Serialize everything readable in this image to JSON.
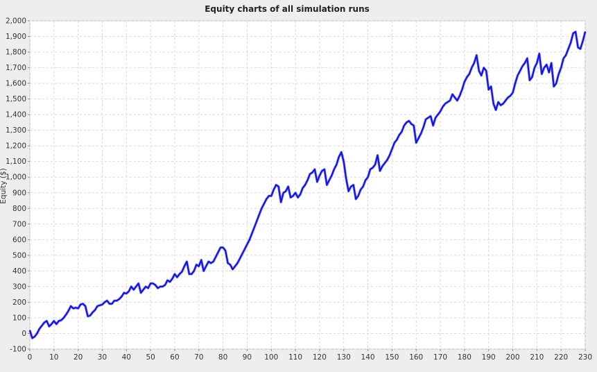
{
  "chart_data": {
    "type": "line",
    "title": "Equity charts of all simulation runs",
    "xlabel": "",
    "ylabel": "Equity ($)",
    "xlim": [
      0,
      230
    ],
    "ylim": [
      -100,
      2000
    ],
    "grid": true,
    "xticks": [
      0,
      10,
      20,
      30,
      40,
      50,
      60,
      70,
      80,
      90,
      100,
      110,
      120,
      130,
      140,
      150,
      160,
      170,
      180,
      190,
      200,
      210,
      220,
      230
    ],
    "xtick_labels": [
      "0",
      "10",
      "20",
      "30",
      "40",
      "50",
      "60",
      "70",
      "80",
      "90",
      "100",
      "110",
      "120",
      "130",
      "140",
      "150",
      "160",
      "170",
      "180",
      "190",
      "200",
      "210",
      "220",
      "230"
    ],
    "yticks": [
      -100,
      0,
      100,
      200,
      300,
      400,
      500,
      600,
      700,
      800,
      900,
      1000,
      1100,
      1200,
      1300,
      1400,
      1500,
      1600,
      1700,
      1800,
      1900,
      2000
    ],
    "ytick_labels": [
      "-100",
      "0",
      "100",
      "200",
      "300",
      "400",
      "500",
      "600",
      "700",
      "800",
      "900",
      "1,000",
      "1,100",
      "1,200",
      "1,300",
      "1,400",
      "1,500",
      "1,600",
      "1,700",
      "1,800",
      "1,900",
      "2,000"
    ],
    "colors": {
      "series_main": "#1010e0",
      "series_shadow": "#8080ff",
      "grid": "#d8d8d8",
      "plot_bg": "#ffffff"
    },
    "series": [
      {
        "x": [
          0,
          1,
          2,
          3,
          4,
          5,
          6,
          7,
          8,
          9,
          10,
          11,
          12,
          13,
          14,
          15,
          16,
          17,
          18,
          19,
          20,
          21,
          22,
          23,
          24,
          25,
          26,
          27,
          28,
          29,
          30,
          31,
          32,
          33,
          34,
          35,
          36,
          37,
          38,
          39,
          40,
          41,
          42,
          43,
          44,
          45,
          46,
          47,
          48,
          49,
          50,
          51,
          52,
          53,
          54,
          55,
          56,
          57,
          58,
          59,
          60,
          61,
          62,
          63,
          64,
          65,
          66,
          67,
          68,
          69,
          70,
          71,
          72,
          73,
          74,
          75,
          76,
          77,
          78,
          79,
          80,
          81,
          82,
          83,
          84,
          85,
          86,
          87,
          88,
          89,
          90,
          91,
          92,
          93,
          94,
          95,
          96,
          97,
          98,
          99,
          100,
          101,
          102,
          103,
          104,
          105,
          106,
          107,
          108,
          109,
          110,
          111,
          112,
          113,
          114,
          115,
          116,
          117,
          118,
          119,
          120,
          121,
          122,
          123,
          124,
          125,
          126,
          127,
          128,
          129,
          130,
          131,
          132,
          133,
          134,
          135,
          136,
          137,
          138,
          139,
          140,
          141,
          142,
          143,
          144,
          145,
          146,
          147,
          148,
          149,
          150,
          151,
          152,
          153,
          154,
          155,
          156,
          157,
          158,
          159,
          160,
          161,
          162,
          163,
          164,
          165,
          166,
          167,
          168,
          169,
          170,
          171,
          172,
          173,
          174,
          175,
          176,
          177,
          178,
          179,
          180,
          181,
          182,
          183,
          184,
          185,
          186,
          187,
          188,
          189,
          190,
          191,
          192,
          193,
          194,
          195,
          196,
          197,
          198,
          199,
          200,
          201,
          202,
          203,
          204,
          205,
          206,
          207,
          208,
          209,
          210,
          211,
          212,
          213,
          214,
          215,
          216,
          217,
          218,
          219,
          220,
          221,
          222,
          223,
          224,
          225,
          226,
          227,
          228,
          229,
          230
        ],
        "values": [
          20,
          -30,
          -20,
          0,
          30,
          50,
          70,
          80,
          45,
          60,
          80,
          60,
          80,
          85,
          100,
          120,
          145,
          175,
          160,
          165,
          160,
          185,
          190,
          175,
          110,
          115,
          135,
          150,
          175,
          180,
          185,
          200,
          210,
          190,
          190,
          210,
          210,
          220,
          235,
          260,
          255,
          270,
          300,
          280,
          300,
          320,
          260,
          280,
          300,
          290,
          320,
          320,
          310,
          290,
          300,
          300,
          310,
          340,
          330,
          350,
          380,
          360,
          380,
          395,
          430,
          460,
          380,
          380,
          400,
          440,
          430,
          470,
          400,
          430,
          460,
          450,
          460,
          490,
          520,
          550,
          550,
          530,
          450,
          440,
          410,
          430,
          450,
          480,
          510,
          540,
          570,
          600,
          640,
          680,
          720,
          760,
          800,
          830,
          860,
          880,
          880,
          920,
          950,
          940,
          840,
          900,
          910,
          940,
          870,
          880,
          900,
          870,
          890,
          930,
          950,
          980,
          1020,
          1030,
          1050,
          970,
          1010,
          1040,
          1050,
          950,
          980,
          1010,
          1050,
          1080,
          1130,
          1160,
          1100,
          990,
          910,
          940,
          950,
          860,
          880,
          920,
          940,
          980,
          1000,
          1050,
          1060,
          1080,
          1140,
          1040,
          1070,
          1090,
          1110,
          1140,
          1180,
          1220,
          1240,
          1270,
          1290,
          1330,
          1350,
          1360,
          1340,
          1330,
          1220,
          1250,
          1280,
          1320,
          1370,
          1380,
          1390,
          1330,
          1380,
          1400,
          1420,
          1450,
          1470,
          1480,
          1490,
          1530,
          1510,
          1490,
          1520,
          1560,
          1610,
          1640,
          1660,
          1700,
          1730,
          1780,
          1680,
          1650,
          1700,
          1680,
          1560,
          1580,
          1470,
          1430,
          1480,
          1460,
          1470,
          1490,
          1510,
          1520,
          1540,
          1600,
          1650,
          1680,
          1710,
          1730,
          1760,
          1620,
          1640,
          1700,
          1730,
          1790,
          1660,
          1700,
          1720,
          1670,
          1730,
          1580,
          1600,
          1660,
          1700,
          1760,
          1780,
          1820,
          1860,
          1920,
          1930,
          1830,
          1820,
          1870,
          1930
        ]
      }
    ]
  }
}
